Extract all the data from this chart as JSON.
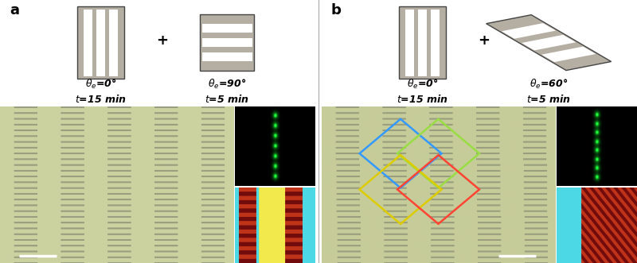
{
  "fig_width": 8.0,
  "fig_height": 3.31,
  "dpi": 100,
  "icon_color": "#b5aea3",
  "icon_edge_color": "#444444",
  "header_bg": "#ffffff",
  "panel_label_fontsize": 13,
  "icon_label_fontsize": 9,
  "main_bg_color": "#cccfa0",
  "stripe_dark_color": "#999a80",
  "fl_dot_color": [
    0.1,
    1.0,
    0.2
  ],
  "scale_bar_color": "#ffffff",
  "blue_rect": "#3399ff",
  "green_rect": "#99dd44",
  "yellow_rect": "#ddcc00",
  "red_rect": "#ff4433",
  "colorful_cyan": [
    0.3,
    0.85,
    0.9
  ],
  "colorful_yellow": [
    0.95,
    0.92,
    0.3
  ],
  "colorful_red": [
    0.75,
    0.2,
    0.1
  ],
  "colorful_dark_red": [
    0.45,
    0.05,
    0.05
  ]
}
